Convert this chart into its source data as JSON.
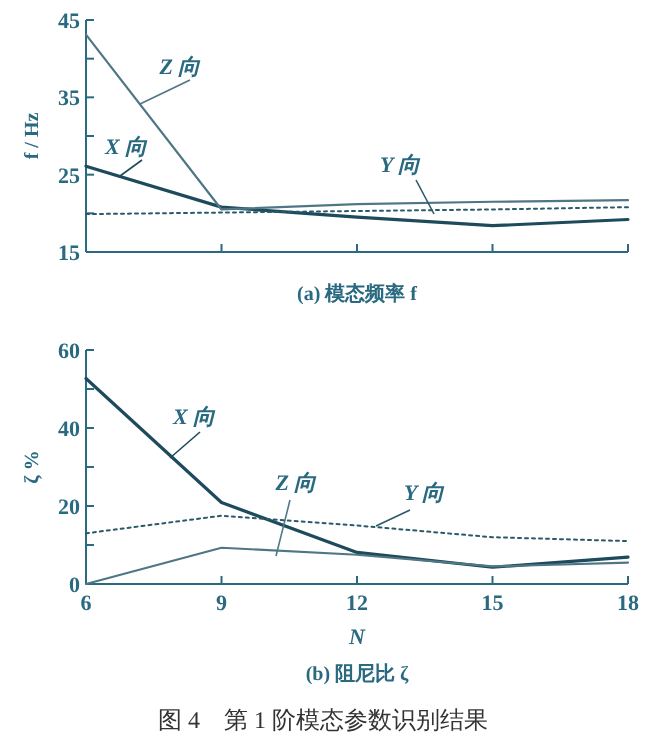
{
  "chart_data": [
    {
      "type": "line",
      "title": "(a) 模态频率 f",
      "ylabel": "f / Hz",
      "x": [
        6,
        9,
        12,
        15,
        18
      ],
      "xlim": [
        6,
        18
      ],
      "xticks": [
        {
          "value": 6,
          "label": null
        },
        {
          "value": 9,
          "label": null
        },
        {
          "value": 12,
          "label": null
        },
        {
          "value": 15,
          "label": null
        },
        {
          "value": 18,
          "label": null
        }
      ],
      "ylim": [
        15,
        45
      ],
      "yticks": [
        15,
        {
          "value": 20,
          "label": null
        },
        25,
        {
          "value": 30,
          "label": null
        },
        35,
        {
          "value": 40,
          "label": null
        },
        45
      ],
      "tick_labels": "y",
      "grid": false,
      "marker": "none",
      "series": [
        {
          "name": "X 向",
          "color": "#1d4b5c",
          "line_style": "solid",
          "values": [
            26.1,
            20.8,
            19.5,
            18.4,
            19.2
          ]
        },
        {
          "name": "Z 向",
          "color": "#4f7684",
          "line_style": "solid",
          "values": [
            43.1,
            20.5,
            21.2,
            21.5,
            21.7
          ]
        },
        {
          "name": "Y 向",
          "color": "#2a5a6a",
          "line_style": "dotted",
          "values": [
            19.9,
            20.1,
            20.3,
            20.5,
            20.8
          ]
        }
      ]
    },
    {
      "type": "line",
      "title": "(b) 阻尼比 ζ",
      "xlabel": "N",
      "ylabel": "ζ %",
      "x": [
        6,
        9,
        12,
        15,
        18
      ],
      "xlim": [
        6,
        18
      ],
      "xticks": [
        6,
        9,
        12,
        15,
        18
      ],
      "ylim": [
        0,
        60
      ],
      "yticks": [
        0,
        {
          "value": 10,
          "label": null
        },
        20,
        {
          "value": 30,
          "label": null
        },
        40,
        {
          "value": 50,
          "label": null
        },
        60
      ],
      "grid": false,
      "marker": "none",
      "annotations": [
        "图 4　第 1 阶模态参数识别结果"
      ],
      "series": [
        {
          "name": "X 向",
          "color": "#1d4b5c",
          "line_style": "solid",
          "values": [
            52.7,
            20.9,
            8.1,
            4.3,
            6.9
          ]
        },
        {
          "name": "Z 向",
          "color": "#4f7684",
          "line_style": "solid",
          "values": [
            0,
            9.3,
            7.5,
            4.5,
            5.5
          ]
        },
        {
          "name": "Y 向",
          "color": "#2a5a6a",
          "line_style": "dotted",
          "values": [
            13.0,
            17.5,
            15.0,
            12.0,
            11.0
          ]
        }
      ]
    }
  ]
}
